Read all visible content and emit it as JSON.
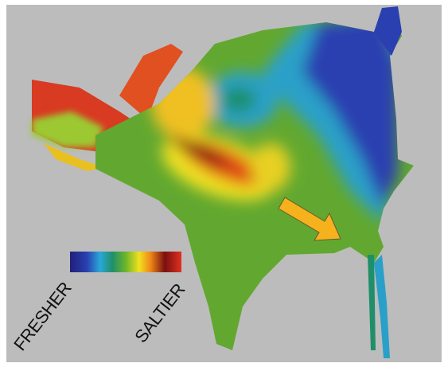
{
  "legend": {
    "low_label": "FRESHER",
    "high_label": "SALTIER"
  }
}
